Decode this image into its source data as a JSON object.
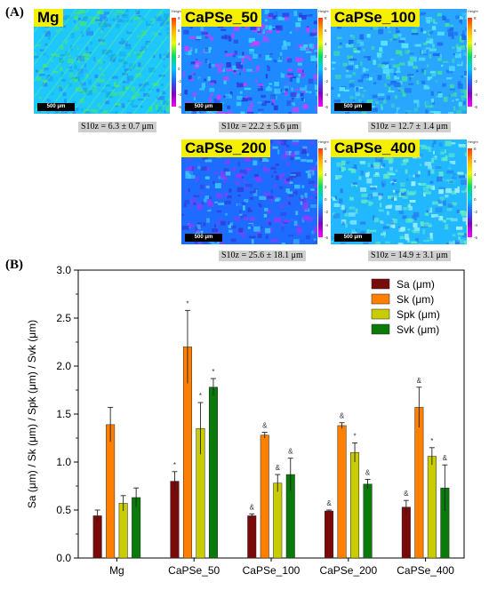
{
  "panel_a_label": "(A)",
  "panel_b_label": "(B)",
  "maps": [
    {
      "label": "Mg",
      "s10z": "S10z = 6.3 ± 0.7 μm",
      "scale": "500 μm",
      "colorbar_title": "Height",
      "ticks": [
        "8",
        "6",
        "4",
        "2",
        "0",
        "-2",
        "-4",
        "-6"
      ],
      "palette": [
        "#1ec8ff",
        "#3fe08a",
        "#2a8cff",
        "#16b0e8"
      ]
    },
    {
      "label": "CaPSe_50",
      "s10z": "S10z = 22.2 ± 5.6 μm",
      "scale": "500 μm",
      "colorbar_title": "Height",
      "ticks": [
        "8",
        "6",
        "4",
        "2",
        "0",
        "-2",
        "-4",
        "-6"
      ],
      "palette": [
        "#1f8aff",
        "#3bd5ff",
        "#2b3ce0",
        "#d03cff"
      ]
    },
    {
      "label": "CaPSe_100",
      "s10z": "S10z = 12.7 ± 1.4 μm",
      "scale": "500 μm",
      "colorbar_title": "Height",
      "ticks": [
        "8",
        "6",
        "4",
        "2",
        "0",
        "-2",
        "-4",
        "-6"
      ],
      "palette": [
        "#29a6ff",
        "#55e6ff",
        "#1f6cf0",
        "#3fdcaa"
      ]
    },
    {
      "label": "CaPSe_200",
      "s10z": "S10z = 25.6 ± 18.1 μm",
      "scale": "500 μm",
      "colorbar_title": "Height",
      "ticks": [
        "8",
        "6",
        "4",
        "2",
        "0",
        "-2",
        "-4",
        "-6"
      ],
      "palette": [
        "#1e6cff",
        "#3cc8ff",
        "#2f3fd8",
        "#8a3cff"
      ]
    },
    {
      "label": "CaPSe_400",
      "s10z": "S10z = 14.9 ± 3.1 μm",
      "scale": "500 μm",
      "colorbar_title": "Height",
      "ticks": [
        "8",
        "6",
        "4",
        "2",
        "0",
        "-2",
        "-4",
        "-6"
      ],
      "palette": [
        "#22b8ff",
        "#5de8c8",
        "#2a7cf0",
        "#9ef0ff"
      ]
    }
  ],
  "chart_data": {
    "type": "bar",
    "categories": [
      "Mg",
      "CaPSe_50",
      "CaPSe_100",
      "CaPSe_200",
      "CaPSe_400"
    ],
    "ylabel": "Sa (μm) / Sk (μm) / Spk (μm) / Svk (μm)",
    "ylim": [
      0,
      3.0
    ],
    "yticks": [
      "0.0",
      "0.5",
      "1.0",
      "1.5",
      "2.0",
      "2.5",
      "3.0"
    ],
    "legend_position": "top-right",
    "series": [
      {
        "name": "Sa (μm)",
        "color": "#7a0a0a",
        "values": [
          0.44,
          0.8,
          0.44,
          0.49,
          0.53
        ],
        "errors": [
          0.06,
          0.1,
          0.02,
          0.01,
          0.07
        ],
        "markers": [
          "",
          "*",
          "&",
          "&",
          "&"
        ]
      },
      {
        "name": "Sk (μm)",
        "color": "#ff8000",
        "values": [
          1.39,
          2.2,
          1.28,
          1.38,
          1.57
        ],
        "errors": [
          0.18,
          0.38,
          0.03,
          0.03,
          0.21
        ],
        "markers": [
          "",
          "*",
          "&",
          "&",
          "&"
        ]
      },
      {
        "name": "Spk (μm)",
        "color": "#c8cc00",
        "values": [
          0.57,
          1.35,
          0.78,
          1.1,
          1.06
        ],
        "errors": [
          0.08,
          0.27,
          0.09,
          0.1,
          0.09
        ],
        "markers": [
          "",
          "*",
          "&",
          "*",
          "*"
        ]
      },
      {
        "name": "Svk (μm)",
        "color": "#0a7a0a",
        "values": [
          0.63,
          1.78,
          0.87,
          0.77,
          0.73
        ],
        "errors": [
          0.1,
          0.09,
          0.17,
          0.05,
          0.24
        ],
        "markers": [
          "",
          "*",
          "&",
          "&",
          "&"
        ]
      }
    ]
  }
}
